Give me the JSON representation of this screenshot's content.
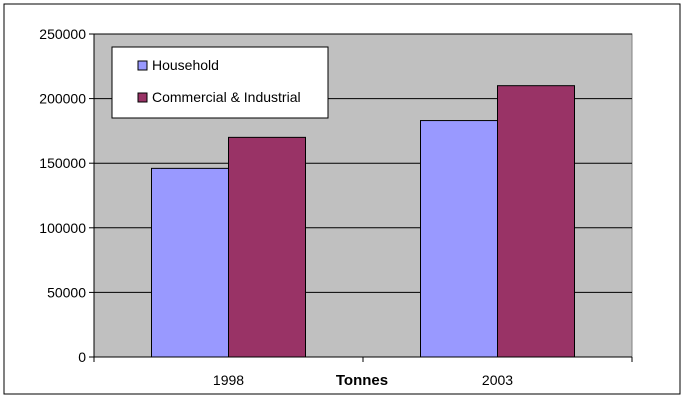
{
  "chart_data": {
    "type": "bar",
    "categories": [
      "1998",
      "2003"
    ],
    "series": [
      {
        "name": "Household",
        "values": [
          146000,
          183000
        ]
      },
      {
        "name": "Commercial & Industrial",
        "values": [
          170000,
          210000
        ]
      }
    ],
    "xlabel": "Tonnes",
    "ylabel": "",
    "ylim": [
      0,
      250000
    ],
    "yticks": [
      "0",
      "50000",
      "100000",
      "150000",
      "200000",
      "250000"
    ],
    "grid": true,
    "legend_position": "top-left",
    "colors": {
      "plot_background": "#C0C0C0",
      "Household": "#9999FF",
      "Commercial & Industrial": "#993366",
      "frame": "#000000"
    }
  }
}
